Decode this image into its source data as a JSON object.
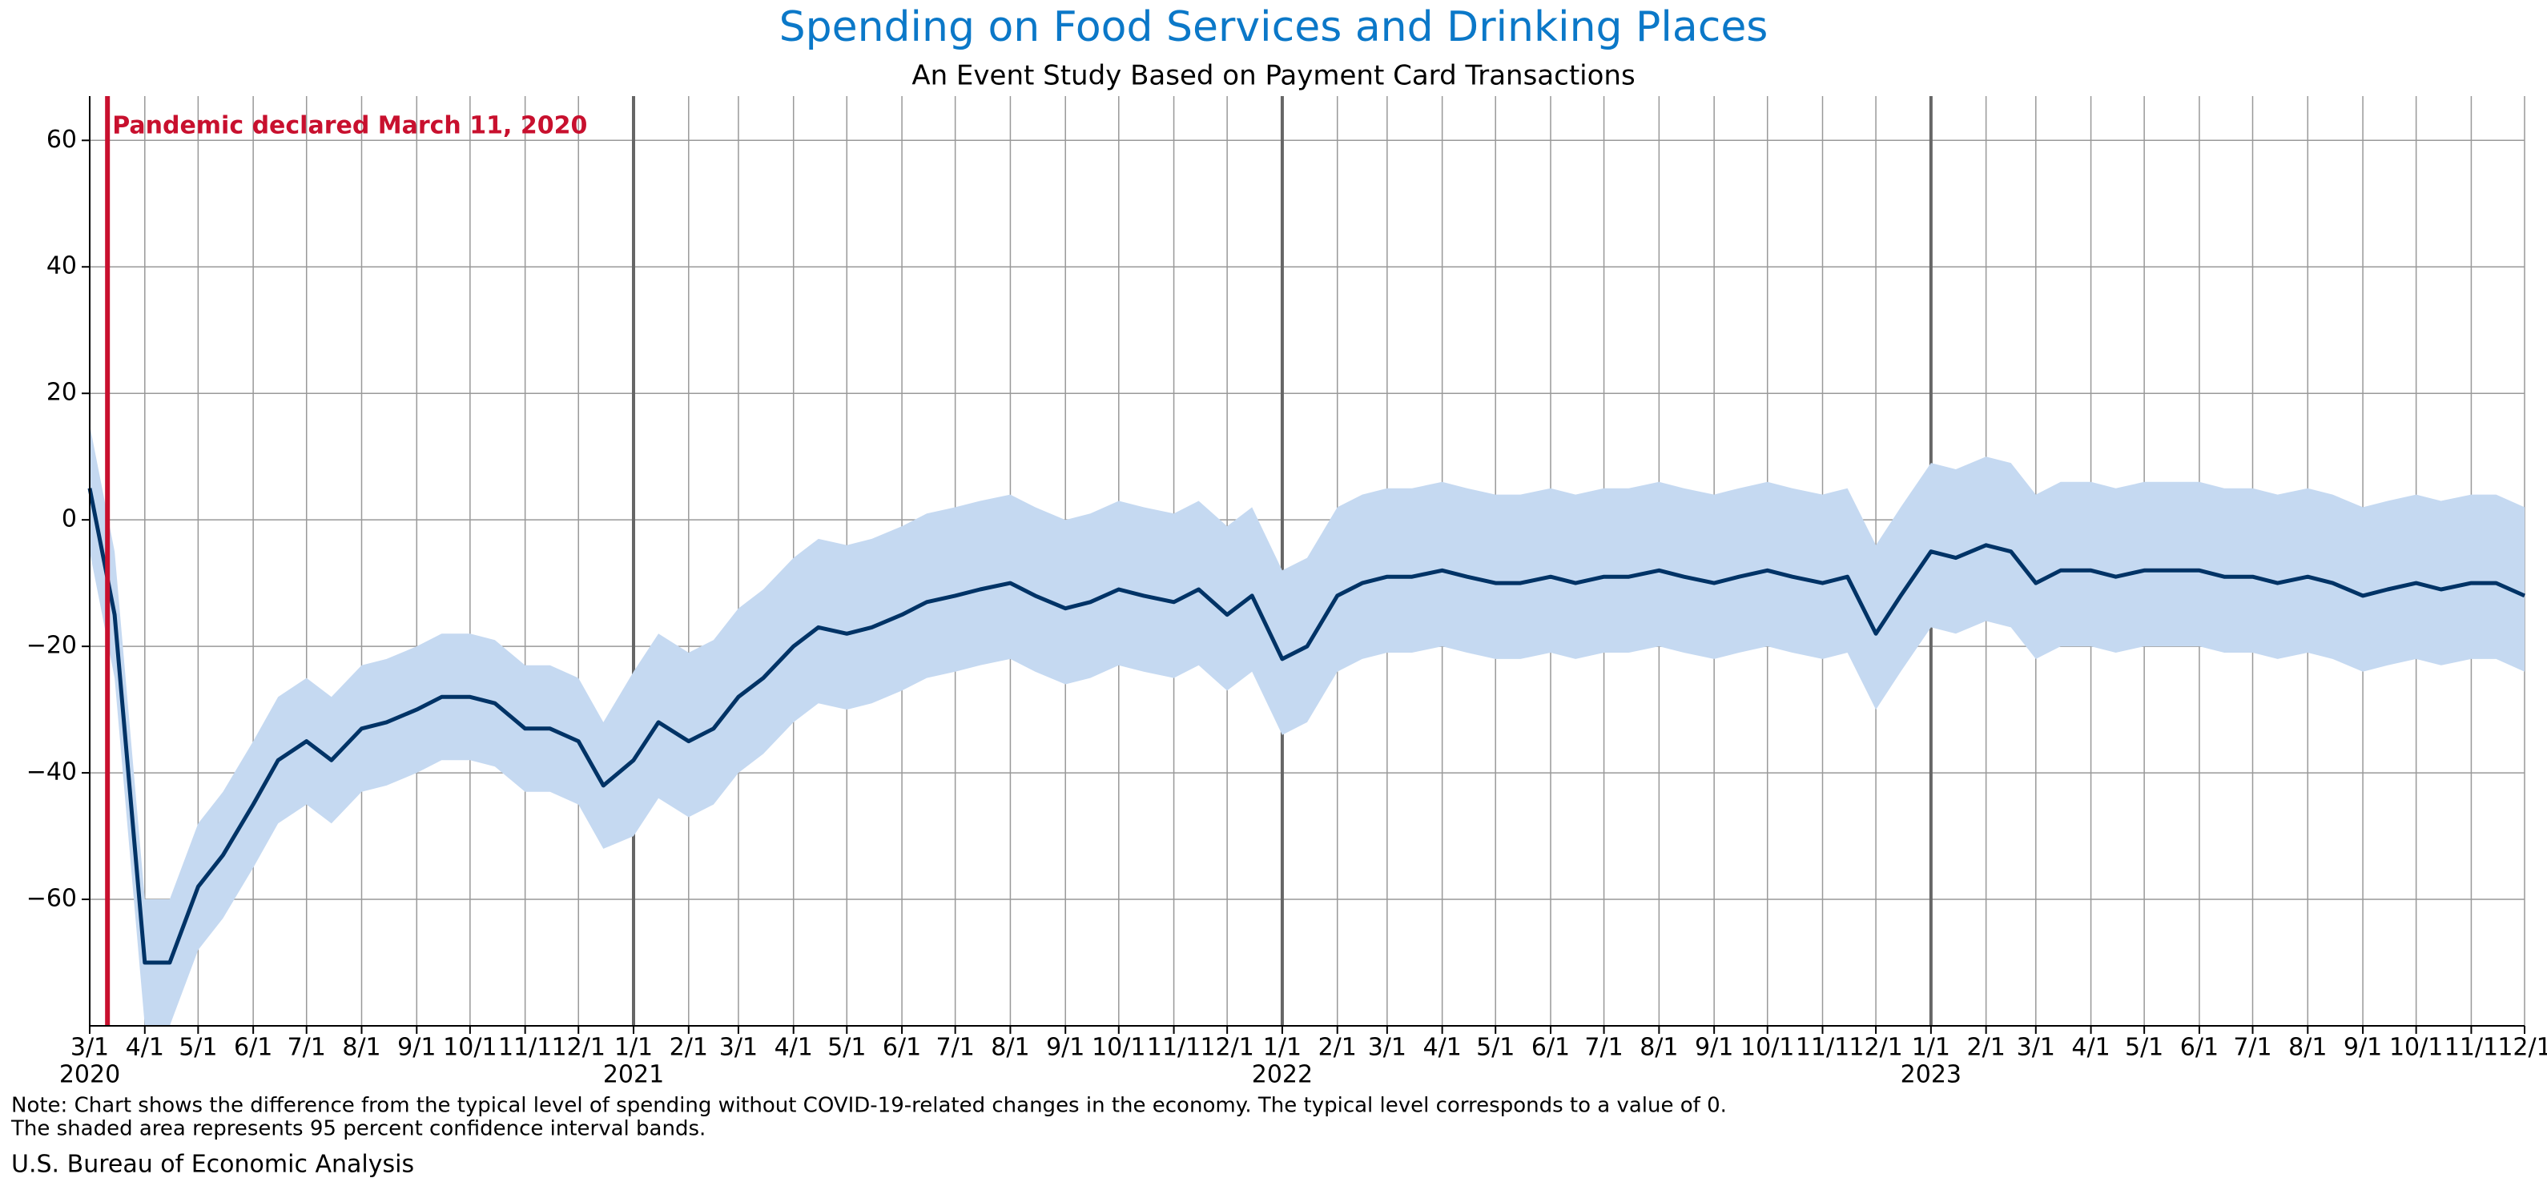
{
  "chart_data": {
    "type": "line",
    "title": "Spending on Food Services and Drinking Places",
    "subtitle": "An Event Study Based on Payment Card Transactions",
    "x": [
      "2020-03-01",
      "2020-03-15",
      "2020-04-01",
      "2020-04-15",
      "2020-05-01",
      "2020-05-15",
      "2020-06-01",
      "2020-06-15",
      "2020-07-01",
      "2020-07-15",
      "2020-08-01",
      "2020-08-15",
      "2020-09-01",
      "2020-09-15",
      "2020-10-01",
      "2020-10-15",
      "2020-11-01",
      "2020-11-15",
      "2020-12-01",
      "2020-12-15",
      "2021-01-01",
      "2021-01-15",
      "2021-02-01",
      "2021-02-15",
      "2021-03-01",
      "2021-03-15",
      "2021-04-01",
      "2021-04-15",
      "2021-05-01",
      "2021-05-15",
      "2021-06-01",
      "2021-06-15",
      "2021-07-01",
      "2021-07-15",
      "2021-08-01",
      "2021-08-15",
      "2021-09-01",
      "2021-09-15",
      "2021-10-01",
      "2021-10-15",
      "2021-11-01",
      "2021-11-15",
      "2021-12-01",
      "2021-12-15",
      "2022-01-01",
      "2022-01-15",
      "2022-02-01",
      "2022-02-15",
      "2022-03-01",
      "2022-03-15",
      "2022-04-01",
      "2022-04-15",
      "2022-05-01",
      "2022-05-15",
      "2022-06-01",
      "2022-06-15",
      "2022-07-01",
      "2022-07-15",
      "2022-08-01",
      "2022-08-15",
      "2022-09-01",
      "2022-09-15",
      "2022-10-01",
      "2022-10-15",
      "2022-11-01",
      "2022-11-15",
      "2022-12-01",
      "2022-12-15",
      "2023-01-01",
      "2023-01-15",
      "2023-02-01",
      "2023-02-15",
      "2023-03-01",
      "2023-03-15",
      "2023-04-01",
      "2023-04-15",
      "2023-05-01",
      "2023-05-15",
      "2023-06-01",
      "2023-06-15",
      "2023-07-01",
      "2023-07-15",
      "2023-08-01",
      "2023-08-15",
      "2023-09-01",
      "2023-09-15",
      "2023-10-01",
      "2023-10-15",
      "2023-11-01",
      "2023-11-15",
      "2023-12-01"
    ],
    "series": [
      {
        "color": "#003366",
        "values": [
          5,
          -15,
          -70,
          -70,
          -58,
          -53,
          -45,
          -38,
          -35,
          -38,
          -33,
          -32,
          -30,
          -28,
          -28,
          -29,
          -33,
          -33,
          -35,
          -42,
          -38,
          -32,
          -35,
          -33,
          -28,
          -25,
          -20,
          -17,
          -18,
          -17,
          -15,
          -13,
          -12,
          -11,
          -10,
          -12,
          -14,
          -13,
          -11,
          -12,
          -13,
          -11,
          -15,
          -12,
          -22,
          -20,
          -12,
          -10,
          -9,
          -9,
          -8,
          -9,
          -10,
          -10,
          -9,
          -10,
          -9,
          -9,
          -8,
          -9,
          -10,
          -9,
          -8,
          -9,
          -10,
          -9,
          -18,
          -12,
          -5,
          -6,
          -4,
          -5,
          -10,
          -8,
          -8,
          -9,
          -8,
          -8,
          -8,
          -9,
          -9,
          -10,
          -9,
          -10,
          -12,
          -11,
          -10,
          -11,
          -10,
          -10,
          -12
        ]
      }
    ],
    "band": {
      "color": "#c5d9f1",
      "lower": [
        -5,
        -25,
        -80,
        -80,
        -68,
        -63,
        -55,
        -48,
        -45,
        -48,
        -43,
        -42,
        -40,
        -38,
        -38,
        -39,
        -43,
        -43,
        -45,
        -52,
        -50,
        -44,
        -47,
        -45,
        -40,
        -37,
        -32,
        -29,
        -30,
        -29,
        -27,
        -25,
        -24,
        -23,
        -22,
        -24,
        -26,
        -25,
        -23,
        -24,
        -25,
        -23,
        -27,
        -24,
        -34,
        -32,
        -24,
        -22,
        -21,
        -21,
        -20,
        -21,
        -22,
        -22,
        -21,
        -22,
        -21,
        -21,
        -20,
        -21,
        -22,
        -21,
        -20,
        -21,
        -22,
        -21,
        -30,
        -24,
        -17,
        -18,
        -16,
        -17,
        -22,
        -20,
        -20,
        -21,
        -20,
        -20,
        -20,
        -21,
        -21,
        -22,
        -21,
        -22,
        -24,
        -23,
        -22,
        -23,
        -22,
        -22,
        -24
      ],
      "upper": [
        15,
        -5,
        -60,
        -60,
        -48,
        -43,
        -35,
        -28,
        -25,
        -28,
        -23,
        -22,
        -20,
        -18,
        -18,
        -19,
        -23,
        -23,
        -25,
        -32,
        -24,
        -18,
        -21,
        -19,
        -14,
        -11,
        -6,
        -3,
        -4,
        -3,
        -1,
        1,
        2,
        3,
        4,
        2,
        0,
        1,
        3,
        2,
        1,
        3,
        -1,
        2,
        -8,
        -6,
        2,
        4,
        5,
        5,
        6,
        5,
        4,
        4,
        5,
        4,
        5,
        5,
        6,
        5,
        4,
        5,
        6,
        5,
        4,
        5,
        -4,
        2,
        9,
        8,
        10,
        9,
        4,
        6,
        6,
        5,
        6,
        6,
        6,
        5,
        5,
        4,
        5,
        4,
        2,
        3,
        4,
        3,
        4,
        4,
        2
      ]
    },
    "xlim": [
      "2020-03-01",
      "2023-12-01"
    ],
    "xticks": [
      {
        "value": "2020-03-01",
        "label": "3/1"
      },
      {
        "value": "2020-04-01",
        "label": "4/1"
      },
      {
        "value": "2020-05-01",
        "label": "5/1"
      },
      {
        "value": "2020-06-01",
        "label": "6/1"
      },
      {
        "value": "2020-07-01",
        "label": "7/1"
      },
      {
        "value": "2020-08-01",
        "label": "8/1"
      },
      {
        "value": "2020-09-01",
        "label": "9/1"
      },
      {
        "value": "2020-10-01",
        "label": "10/1"
      },
      {
        "value": "2020-11-01",
        "label": "11/1"
      },
      {
        "value": "2020-12-01",
        "label": "12/1"
      },
      {
        "value": "2021-01-01",
        "label": "1/1"
      },
      {
        "value": "2021-02-01",
        "label": "2/1"
      },
      {
        "value": "2021-03-01",
        "label": "3/1"
      },
      {
        "value": "2021-04-01",
        "label": "4/1"
      },
      {
        "value": "2021-05-01",
        "label": "5/1"
      },
      {
        "value": "2021-06-01",
        "label": "6/1"
      },
      {
        "value": "2021-07-01",
        "label": "7/1"
      },
      {
        "value": "2021-08-01",
        "label": "8/1"
      },
      {
        "value": "2021-09-01",
        "label": "9/1"
      },
      {
        "value": "2021-10-01",
        "label": "10/1"
      },
      {
        "value": "2021-11-01",
        "label": "11/1"
      },
      {
        "value": "2021-12-01",
        "label": "12/1"
      },
      {
        "value": "2022-01-01",
        "label": "1/1"
      },
      {
        "value": "2022-02-01",
        "label": "2/1"
      },
      {
        "value": "2022-03-01",
        "label": "3/1"
      },
      {
        "value": "2022-04-01",
        "label": "4/1"
      },
      {
        "value": "2022-05-01",
        "label": "5/1"
      },
      {
        "value": "2022-06-01",
        "label": "6/1"
      },
      {
        "value": "2022-07-01",
        "label": "7/1"
      },
      {
        "value": "2022-08-01",
        "label": "8/1"
      },
      {
        "value": "2022-09-01",
        "label": "9/1"
      },
      {
        "value": "2022-10-01",
        "label": "10/1"
      },
      {
        "value": "2022-11-01",
        "label": "11/1"
      },
      {
        "value": "2022-12-01",
        "label": "12/1"
      },
      {
        "value": "2023-01-01",
        "label": "1/1"
      },
      {
        "value": "2023-02-01",
        "label": "2/1"
      },
      {
        "value": "2023-03-01",
        "label": "3/1"
      },
      {
        "value": "2023-04-01",
        "label": "4/1"
      },
      {
        "value": "2023-05-01",
        "label": "5/1"
      },
      {
        "value": "2023-06-01",
        "label": "6/1"
      },
      {
        "value": "2023-07-01",
        "label": "7/1"
      },
      {
        "value": "2023-08-01",
        "label": "8/1"
      },
      {
        "value": "2023-09-01",
        "label": "9/1"
      },
      {
        "value": "2023-10-01",
        "label": "10/1"
      },
      {
        "value": "2023-11-01",
        "label": "11/1"
      },
      {
        "value": "2023-12-01",
        "label": "12/1"
      }
    ],
    "year_labels": [
      {
        "value": "2020-03-01",
        "label": "2020"
      },
      {
        "value": "2021-01-01",
        "label": "2021"
      },
      {
        "value": "2022-01-01",
        "label": "2022"
      },
      {
        "value": "2023-01-01",
        "label": "2023"
      }
    ],
    "ylim": [
      -80,
      67
    ],
    "yticks": [
      {
        "value": -60,
        "label": "−60"
      },
      {
        "value": -40,
        "label": "−40"
      },
      {
        "value": -20,
        "label": "−20"
      },
      0,
      20,
      40,
      60
    ],
    "grid": true,
    "event": {
      "date": "2020-03-11",
      "label": "Pandemic declared March 11, 2020",
      "color": "#c8102e"
    },
    "notes": [
      "Note: Chart shows the difference from the typical level of spending without COVID-19-related changes in the economy. The typical level corresponds to a value of 0.",
      "The shaded area represents 95 percent confidence interval bands."
    ],
    "source": "U.S. Bureau of Economic Analysis"
  }
}
